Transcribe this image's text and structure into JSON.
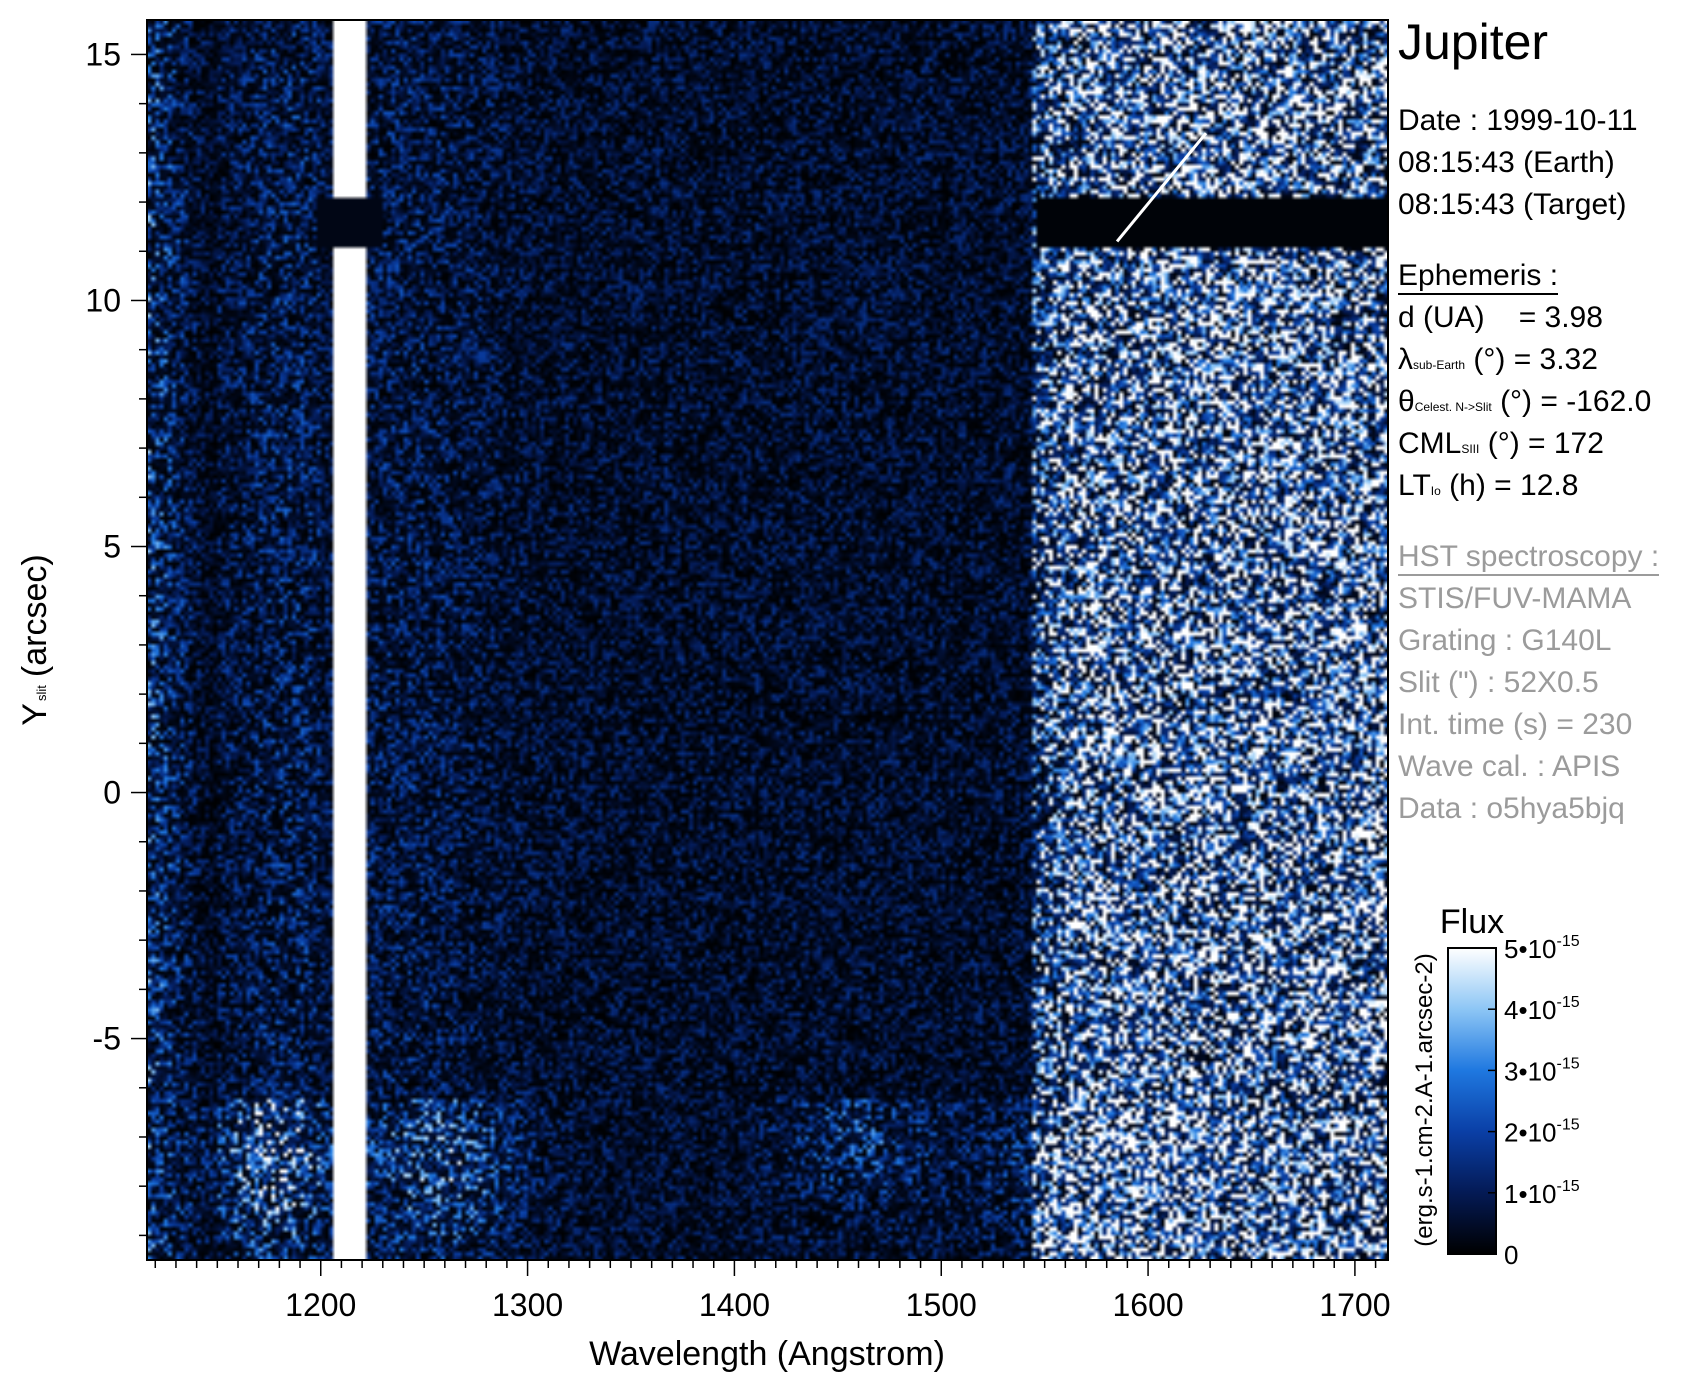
{
  "chart_data": {
    "type": "heatmap",
    "title": "",
    "xlabel": "Wavelength (Angstrom)",
    "ylabel_main": "Y",
    "ylabel_sub": "slit",
    "ylabel_rest": "(arcsec)",
    "xlim": [
      1116,
      1716
    ],
    "ylim": [
      -9.5,
      15.7
    ],
    "xticks": [
      {
        "value": 1200,
        "label": "1200"
      },
      {
        "value": 1300,
        "label": "1300"
      },
      {
        "value": 1400,
        "label": "1400"
      },
      {
        "value": 1500,
        "label": "1500"
      },
      {
        "value": 1600,
        "label": "1600"
      },
      {
        "value": 1700,
        "label": "1700"
      }
    ],
    "yticks": [
      {
        "value": 15,
        "label": "15"
      },
      {
        "value": 10,
        "label": "10"
      },
      {
        "value": 5,
        "label": "5"
      },
      {
        "value": 0,
        "label": "0"
      },
      {
        "value": -5,
        "label": "-5"
      }
    ],
    "features": {
      "lyman_alpha_band_x": [
        1207,
        1221
      ],
      "dark_gap_y": [
        11.1,
        12.1
      ],
      "bright_region_x_start": 1545,
      "marker_line": {
        "x": [
          1585,
          1628
        ],
        "y": [
          11.2,
          13.4
        ]
      }
    },
    "colorbar": {
      "title": "Flux",
      "unit_label": "(erg.s-1.cm-2.A-1.arcsec-2)",
      "range": [
        0,
        5e-15
      ],
      "colors": [
        "#000000",
        "#041a55",
        "#0a3fa6",
        "#1f78e0",
        "#8dc6f5",
        "#ffffff"
      ],
      "ticks": [
        {
          "value": 0,
          "mant": "0",
          "exp": ""
        },
        {
          "value": 1e-15,
          "mant": "1•10",
          "exp": "-15"
        },
        {
          "value": 2e-15,
          "mant": "2•10",
          "exp": "-15"
        },
        {
          "value": 3e-15,
          "mant": "3•10",
          "exp": "-15"
        },
        {
          "value": 4e-15,
          "mant": "4•10",
          "exp": "-15"
        },
        {
          "value": 5e-15,
          "mant": "5•10",
          "exp": "-15"
        }
      ]
    }
  },
  "info": {
    "title": "Jupiter",
    "date_line": "Date : 1999-10-11",
    "earth_time": "08:15:43 (Earth)",
    "target_time": "08:15:43 (Target)",
    "ephemeris_header": "Ephemeris :",
    "d_label": "d (UA)",
    "d_value": "= 3.98",
    "lambda_symbol": "λ",
    "lambda_sub": "sub-Earth",
    "lambda_rest": "(°)  = 3.32",
    "theta_symbol": "θ",
    "theta_sub": "Celest. N->Slit",
    "theta_rest": "(°) = -162.0",
    "cml_main": "CML",
    "cml_sub": "SIII",
    "cml_rest": "(°) = 172",
    "lt_main": "LT",
    "lt_sub": "Io",
    "lt_rest": "(h) = 12.8",
    "hst_header": "HST spectroscopy :",
    "instrument": "STIS/FUV-MAMA",
    "grating": "Grating : G140L",
    "slit": "Slit (\") : 52X0.5",
    "int_time": "Int. time (s) = 230",
    "wave_cal": "Wave cal. : APIS",
    "data_id": "Data : o5hya5bjq"
  }
}
